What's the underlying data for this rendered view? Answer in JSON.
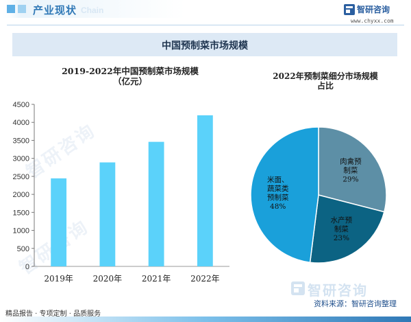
{
  "header": {
    "section_title": "产业现状",
    "ghost_text": "Chain",
    "brand_name": "智研咨询",
    "brand_url": "www.chyxx.com",
    "accent_color": "#2f78b6",
    "band_color": "#5fb0e6"
  },
  "banner": {
    "title": "中国预制菜市场规模"
  },
  "chart_data": [
    {
      "type": "bar",
      "title": "2019-2022年中国预制菜市场规模\n（亿元）",
      "categories": [
        "2019年",
        "2020年",
        "2021年",
        "2022年"
      ],
      "values": [
        2445,
        2888,
        3459,
        4196
      ],
      "ylim": [
        0,
        4500
      ],
      "yticks": [
        0,
        500,
        1000,
        1500,
        2000,
        2500,
        3000,
        3500,
        4000,
        4500
      ],
      "grid": false,
      "bar_color": "#5bd2fa"
    },
    {
      "type": "pie",
      "title": "2022年预制菜细分市场规模\n占比",
      "slices": [
        {
          "label": "肉禽预\n制菜",
          "value": 29,
          "value_label": "29%",
          "color": "#5d8fa6"
        },
        {
          "label": "水产预\n制菜",
          "value": 23,
          "value_label": "23%",
          "color": "#0c6383"
        },
        {
          "label": "米面、\n蔬菜类\n预制菜",
          "value": 48,
          "value_label": "48%",
          "color": "#1aa0da"
        }
      ]
    }
  ],
  "footer": {
    "brand": "智研咨询",
    "source": "资料来源：智研咨询整理",
    "tagline": "精品报告 · 专项定制 · 品质服务"
  },
  "watermarks": [
    "智研咨询",
    "智研咨询"
  ]
}
